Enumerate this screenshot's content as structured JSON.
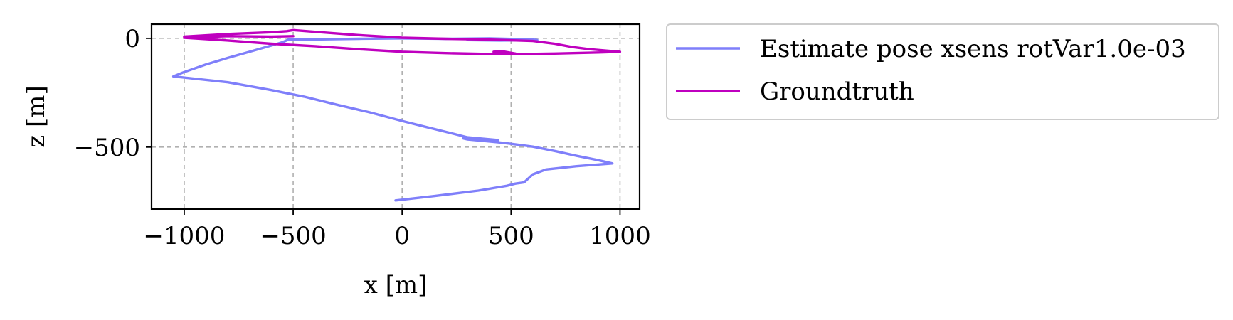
{
  "chart_data": {
    "type": "line",
    "xlabel": "x [m]",
    "ylabel": "z [m]",
    "xlim": [
      -1150,
      1090
    ],
    "ylim": [
      -785,
      65
    ],
    "xticks": [
      -1000,
      -500,
      0,
      500,
      1000
    ],
    "xtick_labels": [
      "−1000",
      "−500",
      "0",
      "500",
      "1000"
    ],
    "yticks": [
      0,
      -500
    ],
    "ytick_labels": [
      "0",
      "−500"
    ],
    "grid": true,
    "legend_position": "outside-right",
    "series": [
      {
        "name": "Estimate pose xsens rotVar1.0e-03",
        "color": "#7f7ffa",
        "points": [
          [
            -30,
            -745
          ],
          [
            150,
            -725
          ],
          [
            350,
            -700
          ],
          [
            480,
            -678
          ],
          [
            520,
            -668
          ],
          [
            560,
            -662
          ],
          [
            575,
            -648
          ],
          [
            600,
            -625
          ],
          [
            660,
            -603
          ],
          [
            800,
            -588
          ],
          [
            965,
            -575
          ],
          [
            900,
            -560
          ],
          [
            800,
            -540
          ],
          [
            700,
            -518
          ],
          [
            600,
            -498
          ],
          [
            500,
            -485
          ],
          [
            440,
            -478
          ],
          [
            380,
            -472
          ],
          [
            300,
            -465
          ],
          [
            280,
            -460
          ],
          [
            300,
            -458
          ],
          [
            440,
            -468
          ],
          [
            300,
            -455
          ],
          [
            200,
            -430
          ],
          [
            100,
            -405
          ],
          [
            0,
            -380
          ],
          [
            -150,
            -340
          ],
          [
            -300,
            -305
          ],
          [
            -450,
            -268
          ],
          [
            -600,
            -238
          ],
          [
            -800,
            -202
          ],
          [
            -1050,
            -175
          ],
          [
            -1000,
            -155
          ],
          [
            -900,
            -120
          ],
          [
            -800,
            -90
          ],
          [
            -700,
            -62
          ],
          [
            -600,
            -33
          ],
          [
            -550,
            -18
          ],
          [
            -520,
            -5
          ],
          [
            -400,
            -5
          ],
          [
            -200,
            -2
          ],
          [
            0,
            0
          ],
          [
            200,
            -2
          ],
          [
            400,
            0
          ],
          [
            600,
            -5
          ],
          [
            620,
            -8
          ],
          [
            450,
            -10
          ],
          [
            300,
            -8
          ]
        ]
      },
      {
        "name": "Groundtruth",
        "color": "#bf00bf",
        "points": [
          [
            -1000,
            8
          ],
          [
            -800,
            20
          ],
          [
            -600,
            28
          ],
          [
            -530,
            33
          ],
          [
            -500,
            38
          ],
          [
            -400,
            30
          ],
          [
            -200,
            15
          ],
          [
            0,
            3
          ],
          [
            200,
            -2
          ],
          [
            380,
            -5
          ],
          [
            470,
            -8
          ],
          [
            600,
            -12
          ],
          [
            700,
            -25
          ],
          [
            780,
            -40
          ],
          [
            860,
            -50
          ],
          [
            1000,
            -62
          ],
          [
            900,
            -65
          ],
          [
            700,
            -70
          ],
          [
            560,
            -72
          ],
          [
            480,
            -70
          ],
          [
            420,
            -62
          ],
          [
            460,
            -60
          ],
          [
            520,
            -70
          ],
          [
            400,
            -72
          ],
          [
            200,
            -68
          ],
          [
            0,
            -62
          ],
          [
            -200,
            -50
          ],
          [
            -400,
            -36
          ],
          [
            -600,
            -25
          ],
          [
            -800,
            -10
          ],
          [
            -1000,
            3
          ],
          [
            -800,
            10
          ],
          [
            -600,
            8
          ],
          [
            -500,
            10
          ]
        ]
      }
    ]
  }
}
